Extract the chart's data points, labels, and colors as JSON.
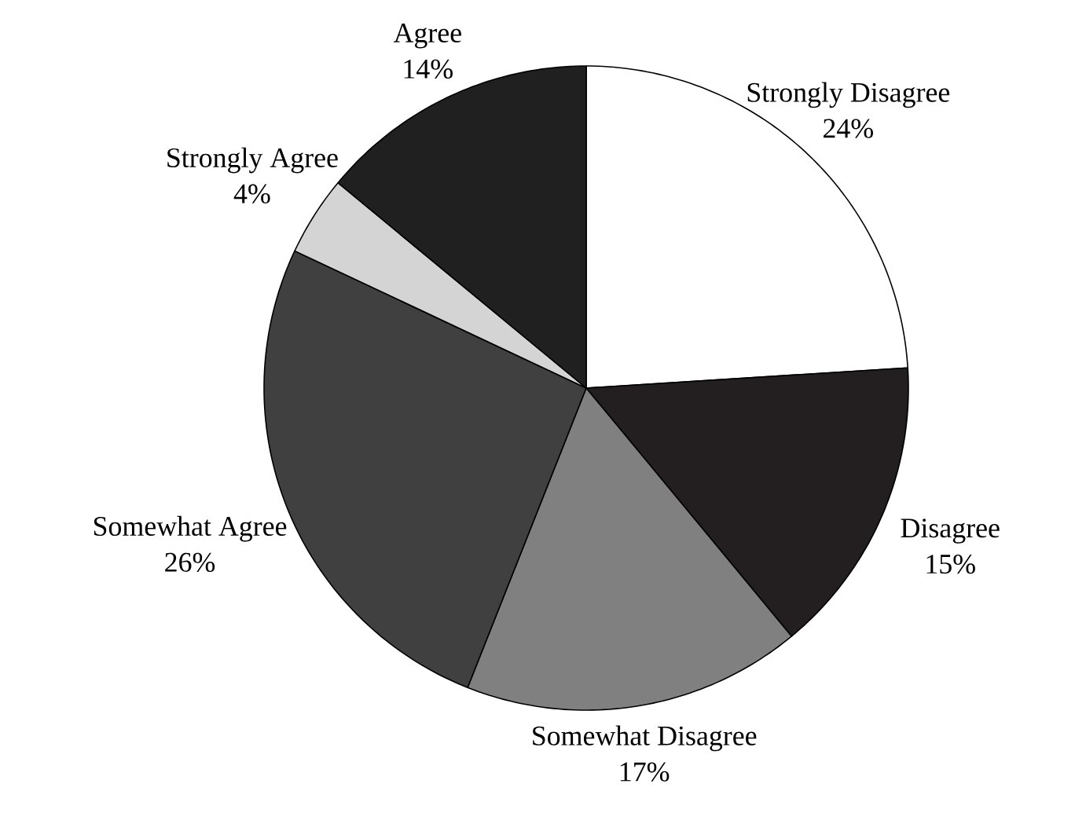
{
  "chart_data": {
    "type": "pie",
    "categories": [
      "Strongly Disagree",
      "Disagree",
      "Somewhat Disagree",
      "Somewhat Agree",
      "Strongly Agree",
      "Agree"
    ],
    "values": [
      24,
      15,
      17,
      26,
      4,
      14
    ],
    "colors": [
      "#ffffff",
      "#231f20",
      "#808080",
      "#404040",
      "#d4d4d4",
      "#202020"
    ],
    "value_labels": [
      "24%",
      "15%",
      "17%",
      "26%",
      "4%",
      "14%"
    ]
  }
}
